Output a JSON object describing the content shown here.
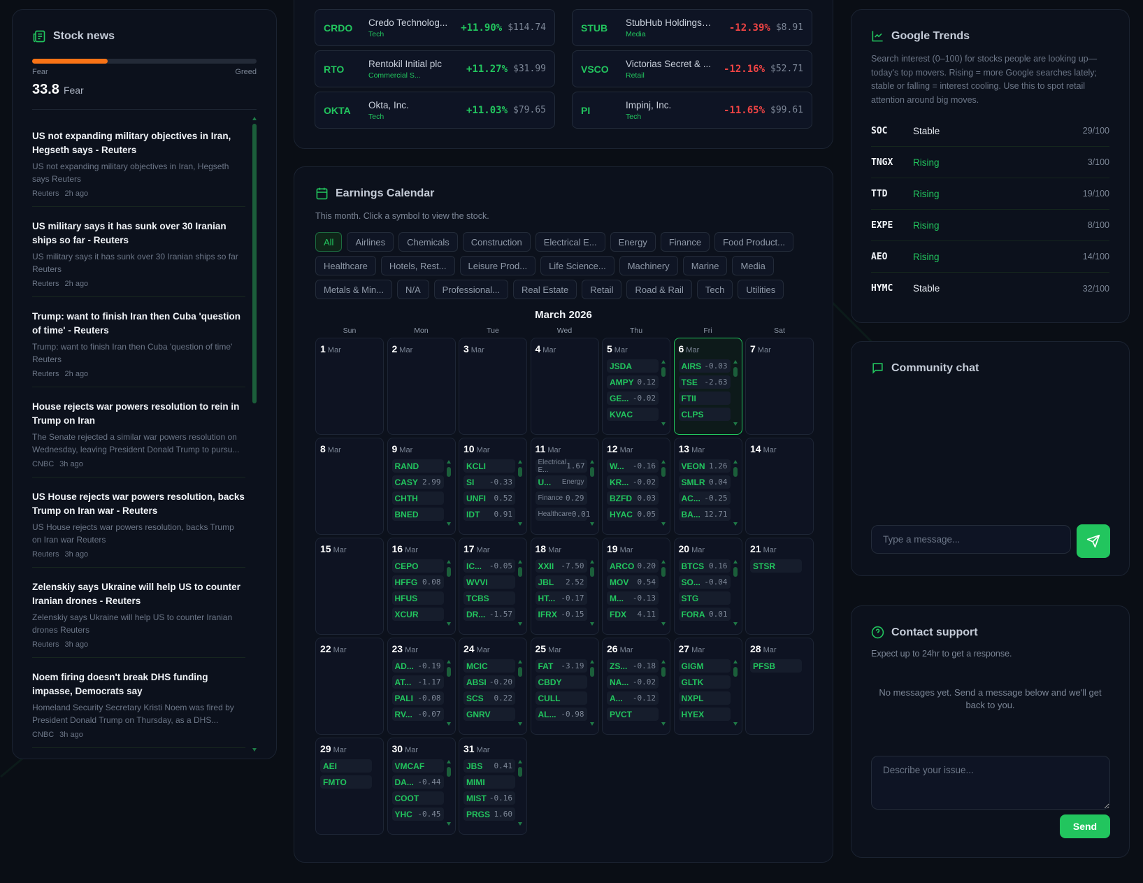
{
  "colors": {
    "accent": "#22c55e",
    "negative": "#ef4444",
    "fear": "#f97316"
  },
  "news": {
    "title": "Stock news",
    "icon": "newspaper-icon",
    "fear_greed": {
      "value": 33.8,
      "value_label": "33.8",
      "label": "Fear",
      "min_label": "Fear",
      "max_label": "Greed",
      "fill_percent": 33.8
    },
    "items": [
      {
        "title": "US not expanding military objectives in Iran, Hegseth says - Reuters",
        "summary": "US not expanding military objectives in Iran, Hegseth says  Reuters",
        "source": "Reuters",
        "time": "2h ago"
      },
      {
        "title": "US military says it has sunk over 30 Iranian ships so far - Reuters",
        "summary": "US military says it has sunk over 30 Iranian ships so far  Reuters",
        "source": "Reuters",
        "time": "2h ago"
      },
      {
        "title": "Trump: want to finish Iran then Cuba 'question of time' - Reuters",
        "summary": "Trump: want to finish Iran then Cuba 'question of time'  Reuters",
        "source": "Reuters",
        "time": "2h ago"
      },
      {
        "title": "House rejects war powers resolution to rein in Trump on Iran",
        "summary": "The Senate rejected a similar war powers resolution on Wednesday, leaving President Donald Trump to pursu...",
        "source": "CNBC",
        "time": "3h ago"
      },
      {
        "title": "US House rejects war powers resolution, backs Trump on Iran war - Reuters",
        "summary": "US House rejects war powers resolution, backs Trump on Iran war  Reuters",
        "source": "Reuters",
        "time": "3h ago"
      },
      {
        "title": "Zelenskiy says Ukraine will help US to counter Iranian drones - Reuters",
        "summary": "Zelenskiy says Ukraine will help US to counter Iranian drones  Reuters",
        "source": "Reuters",
        "time": "3h ago"
      },
      {
        "title": "Noem firing doesn't break DHS funding impasse, Democrats say",
        "summary": "Homeland Security Secretary Kristi Noem was fired by President Donald Trump on Thursday, as a DHS...",
        "source": "CNBC",
        "time": "3h ago"
      }
    ]
  },
  "movers": {
    "gainers": [
      {
        "ticker": "CRDO",
        "name": "Credo Technolog...",
        "sector": "Tech",
        "change": "+11.90%",
        "price": "$114.74"
      },
      {
        "ticker": "RTO",
        "name": "Rentokil Initial plc",
        "sector": "Commercial S...",
        "change": "+11.27%",
        "price": "$31.99"
      },
      {
        "ticker": "OKTA",
        "name": "Okta, Inc.",
        "sector": "Tech",
        "change": "+11.03%",
        "price": "$79.65"
      }
    ],
    "losers": [
      {
        "ticker": "STUB",
        "name": "StubHub Holdings, I...",
        "sector": "Media",
        "change": "-12.39%",
        "price": "$8.91"
      },
      {
        "ticker": "VSCO",
        "name": "Victorias Secret & ...",
        "sector": "Retail",
        "change": "-12.16%",
        "price": "$52.71"
      },
      {
        "ticker": "PI",
        "name": "Impinj, Inc.",
        "sector": "Tech",
        "change": "-11.65%",
        "price": "$99.61"
      }
    ]
  },
  "earnings": {
    "title": "Earnings Calendar",
    "icon": "calendar-icon",
    "subtitle": "This month. Click a symbol to view the stock.",
    "filters": [
      "All",
      "Airlines",
      "Chemicals",
      "Construction",
      "Electrical E...",
      "Energy",
      "Finance",
      "Food Product...",
      "Healthcare",
      "Hotels, Rest...",
      "Leisure Prod...",
      "Life Science...",
      "Machinery",
      "Marine",
      "Media",
      "Metals & Min...",
      "N/A",
      "Professional...",
      "Real Estate",
      "Retail",
      "Road & Rail",
      "Tech",
      "Utilities"
    ],
    "active_filter": "All",
    "month_label": "March 2026",
    "month_short": "Mar",
    "weekdays": [
      "Sun",
      "Mon",
      "Tue",
      "Wed",
      "Thu",
      "Fri",
      "Sat"
    ],
    "first_weekday": 0,
    "days_in_month": 31,
    "selected_day": 6,
    "days": {
      "5": [
        [
          "JSDA",
          ""
        ],
        [
          "AMPY",
          "0.12"
        ],
        [
          "GE...",
          "-0.02"
        ],
        [
          "KVAC",
          ""
        ]
      ],
      "6": [
        [
          "AIRS",
          "-0.03"
        ],
        [
          "TSE",
          "-2.63"
        ],
        [
          "FTII",
          ""
        ],
        [
          "CLPS",
          ""
        ]
      ],
      "9": [
        [
          "RAND",
          ""
        ],
        [
          "CASY",
          "2.99"
        ],
        [
          "CHTH",
          ""
        ],
        [
          "BNED",
          ""
        ]
      ],
      "10": [
        [
          "KCLI",
          ""
        ],
        [
          "SI",
          "-0.33"
        ],
        [
          "UNFI",
          "0.52"
        ],
        [
          "IDT",
          "0.91"
        ]
      ],
      "11": [
        [
          "",
          "1.67",
          "Electrical E..."
        ],
        [
          "U...",
          "",
          "Energy"
        ],
        [
          "",
          "0.29",
          "Finance"
        ],
        [
          "",
          "0.01",
          "Healthcare"
        ]
      ],
      "12": [
        [
          "W...",
          "-0.16"
        ],
        [
          "KR...",
          "-0.02"
        ],
        [
          "BZFD",
          "0.03"
        ],
        [
          "HYAC",
          "0.05"
        ]
      ],
      "13": [
        [
          "VEON",
          "1.26"
        ],
        [
          "SMLR",
          "0.04"
        ],
        [
          "AC...",
          "-0.25"
        ],
        [
          "BA...",
          "12.71"
        ]
      ],
      "16": [
        [
          "CEPO",
          ""
        ],
        [
          "HFFG",
          "0.08"
        ],
        [
          "HFUS",
          ""
        ],
        [
          "XCUR",
          ""
        ]
      ],
      "17": [
        [
          "IC...",
          "-0.05"
        ],
        [
          "WVVI",
          ""
        ],
        [
          "TCBS",
          ""
        ],
        [
          "DR...",
          "-1.57"
        ]
      ],
      "18": [
        [
          "XXII",
          "-7.50"
        ],
        [
          "JBL",
          "2.52"
        ],
        [
          "HT...",
          "-0.17"
        ],
        [
          "IFRX",
          "-0.15"
        ]
      ],
      "19": [
        [
          "ARCO",
          "0.20"
        ],
        [
          "MOV",
          "0.54"
        ],
        [
          "M...",
          "-0.13"
        ],
        [
          "FDX",
          "4.11"
        ]
      ],
      "20": [
        [
          "BTCS",
          "0.16"
        ],
        [
          "SO...",
          "-0.04"
        ],
        [
          "STG",
          ""
        ],
        [
          "FORA",
          "0.01"
        ]
      ],
      "21": [
        [
          "STSR",
          ""
        ]
      ],
      "23": [
        [
          "AD...",
          "-0.19"
        ],
        [
          "AT...",
          "-1.17"
        ],
        [
          "PALI",
          "-0.08"
        ],
        [
          "RV...",
          "-0.07"
        ]
      ],
      "24": [
        [
          "MCIC",
          ""
        ],
        [
          "ABSI",
          "-0.20"
        ],
        [
          "SCS",
          "0.22"
        ],
        [
          "GNRV",
          ""
        ]
      ],
      "25": [
        [
          "FAT",
          "-3.19"
        ],
        [
          "CBDY",
          ""
        ],
        [
          "CULL",
          ""
        ],
        [
          "AL...",
          "-0.98"
        ]
      ],
      "26": [
        [
          "ZS...",
          "-0.18"
        ],
        [
          "NA...",
          "-0.02"
        ],
        [
          "A...",
          "-0.12"
        ],
        [
          "PVCT",
          ""
        ]
      ],
      "27": [
        [
          "GIGM",
          ""
        ],
        [
          "GLTK",
          ""
        ],
        [
          "NXPL",
          ""
        ],
        [
          "HYEX",
          ""
        ]
      ],
      "28": [
        [
          "PFSB",
          ""
        ]
      ],
      "29": [
        [
          "AEI",
          ""
        ],
        [
          "FMTO",
          ""
        ]
      ],
      "30": [
        [
          "VMCAF",
          ""
        ],
        [
          "DA...",
          "-0.44"
        ],
        [
          "COOT",
          ""
        ],
        [
          "YHC",
          "-0.45"
        ]
      ],
      "31": [
        [
          "JBS",
          "0.41"
        ],
        [
          "MIMI",
          ""
        ],
        [
          "MIST",
          "-0.16"
        ],
        [
          "PRGS",
          "1.60"
        ]
      ]
    }
  },
  "trends": {
    "title": "Google Trends",
    "icon": "trend-chart-icon",
    "description": "Search interest (0–100) for stocks people are looking up—today's top movers. Rising = more Google searches lately; stable or falling = interest cooling. Use this to spot retail attention around big moves.",
    "rows": [
      {
        "ticker": "SOC",
        "status": "Stable",
        "score": "29/100"
      },
      {
        "ticker": "TNGX",
        "status": "Rising",
        "score": "3/100"
      },
      {
        "ticker": "TTD",
        "status": "Rising",
        "score": "19/100"
      },
      {
        "ticker": "EXPE",
        "status": "Rising",
        "score": "8/100"
      },
      {
        "ticker": "AEO",
        "status": "Rising",
        "score": "14/100"
      },
      {
        "ticker": "HYMC",
        "status": "Stable",
        "score": "32/100"
      }
    ]
  },
  "chat": {
    "title": "Community chat",
    "icon": "chat-bubble-icon",
    "placeholder": "Type a message...",
    "send_icon": "paper-plane-icon"
  },
  "support": {
    "title": "Contact support",
    "icon": "help-circle-icon",
    "subtitle": "Expect up to 24hr to get a response.",
    "empty": "No messages yet. Send a message below and we'll get back to you.",
    "placeholder": "Describe your issue...",
    "send_label": "Send"
  }
}
